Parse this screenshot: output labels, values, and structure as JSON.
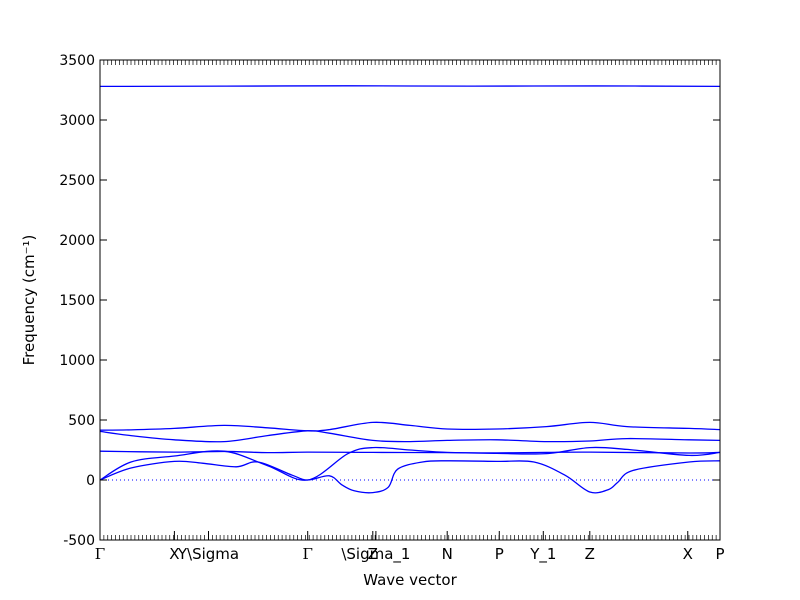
{
  "chart_data": {
    "type": "line",
    "xlabel": "Wave vector",
    "ylabel": "Frequency (cm⁻¹)",
    "ylim": [
      -500,
      3500
    ],
    "xlim": [
      0,
      1
    ],
    "yticks": [
      -500,
      0,
      500,
      1000,
      1500,
      2000,
      2500,
      3000,
      3500
    ],
    "grid": false,
    "line_color": "#0000ff",
    "zero_line_color": "#0000ff",
    "kpoints": [
      {
        "label": "Γ",
        "x": 0.0
      },
      {
        "label": "X",
        "x": 0.12
      },
      {
        "label": "Y\\Sigma",
        "x": 0.175
      },
      {
        "label": "Γ",
        "x": 0.335
      },
      {
        "label": "Z",
        "x": 0.44
      },
      {
        "label": "\\Sigma_1",
        "x": 0.445
      },
      {
        "label": "N",
        "x": 0.56
      },
      {
        "label": "P",
        "x": 0.644
      },
      {
        "label": "Y_1",
        "x": 0.715
      },
      {
        "label": "Z",
        "x": 0.79
      },
      {
        "label": "X",
        "x": 0.948
      },
      {
        "label": "P",
        "x": 1.0
      }
    ],
    "series": [
      {
        "x": [
          0,
          0.2,
          0.4,
          0.6,
          0.8,
          1.0
        ],
        "y": [
          3280,
          3282,
          3285,
          3282,
          3284,
          3280
        ]
      },
      {
        "x": [
          0,
          0.05,
          0.12,
          0.2,
          0.27,
          0.335,
          0.37,
          0.44,
          0.5,
          0.56,
          0.64,
          0.72,
          0.79,
          0.85,
          0.95,
          1.0
        ],
        "y": [
          415,
          418,
          430,
          455,
          435,
          410,
          420,
          480,
          455,
          425,
          425,
          445,
          480,
          445,
          430,
          420
        ]
      },
      {
        "x": [
          0,
          0.05,
          0.12,
          0.2,
          0.27,
          0.335,
          0.37,
          0.44,
          0.5,
          0.56,
          0.64,
          0.72,
          0.79,
          0.85,
          0.95,
          1.0
        ],
        "y": [
          405,
          370,
          335,
          320,
          370,
          410,
          390,
          330,
          320,
          330,
          335,
          320,
          325,
          345,
          335,
          330
        ]
      },
      {
        "x": [
          0,
          0.12,
          0.2,
          0.27,
          0.335,
          0.44,
          0.56,
          0.64,
          0.72,
          0.79,
          0.95,
          1.0
        ],
        "y": [
          240,
          232,
          238,
          228,
          232,
          230,
          228,
          226,
          230,
          232,
          225,
          230
        ]
      },
      {
        "x": [
          0,
          0.05,
          0.12,
          0.2,
          0.27,
          0.335,
          0.4,
          0.44,
          0.5,
          0.56,
          0.64,
          0.72,
          0.79,
          0.85,
          0.95,
          1.0
        ],
        "y": [
          0,
          150,
          200,
          240,
          120,
          0,
          220,
          270,
          250,
          230,
          222,
          220,
          270,
          255,
          205,
          230
        ]
      },
      {
        "x": [
          0,
          0.05,
          0.12,
          0.165,
          0.22,
          0.255,
          0.31,
          0.335,
          0.37,
          0.39,
          0.41,
          0.44,
          0.465,
          0.48,
          0.52,
          0.56,
          0.64,
          0.7,
          0.75,
          0.79,
          0.82,
          0.835,
          0.86,
          0.95,
          1.0
        ],
        "y": [
          0,
          100,
          155,
          140,
          110,
          150,
          40,
          0,
          35,
          -40,
          -90,
          -105,
          -60,
          90,
          150,
          160,
          155,
          150,
          40,
          -100,
          -80,
          -20,
          80,
          150,
          160
        ]
      }
    ]
  }
}
